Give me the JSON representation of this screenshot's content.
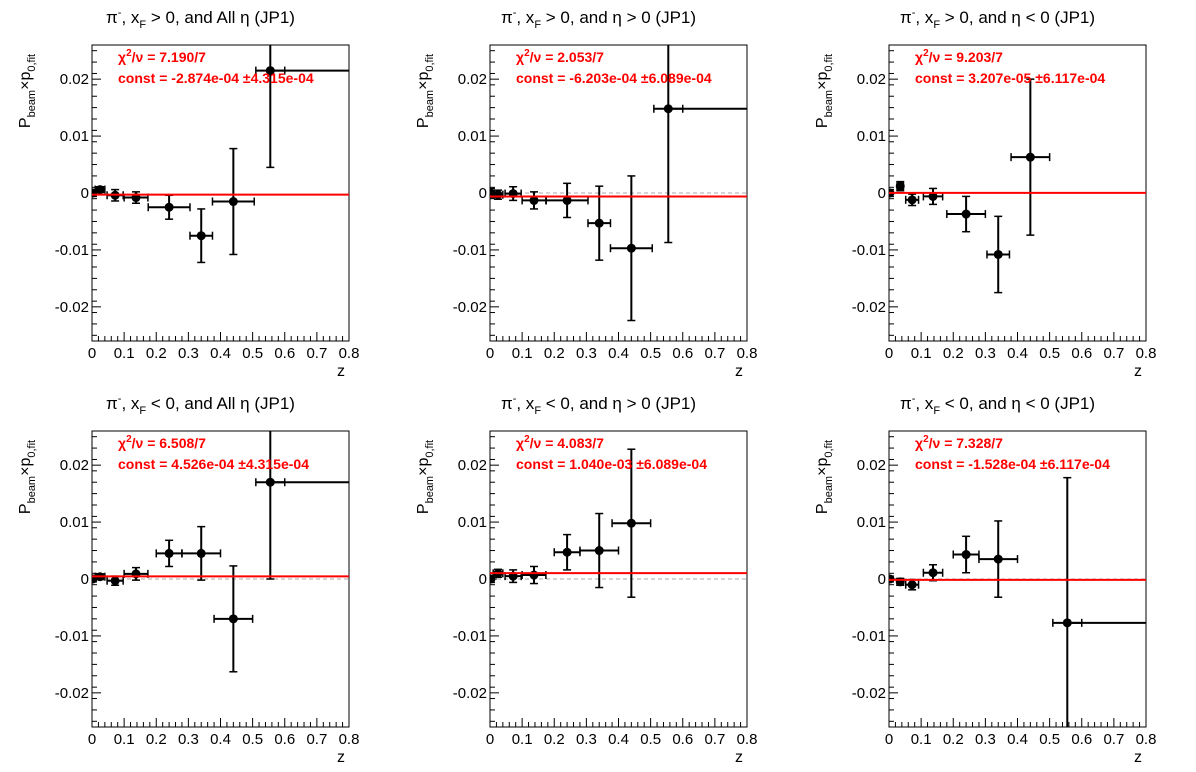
{
  "chart_data": [
    {
      "type": "scatter",
      "title": "π⁻, x_F > 0, and All η (JP1)",
      "title_parts": {
        "pre": "π",
        "sup": "-",
        "mid": ", x",
        "sub": "F",
        "post": " > 0, and All η (JP1)"
      },
      "xlabel": "z",
      "ylabel": "P_beam×p_0,fit",
      "ylabel_parts": {
        "a": "P",
        "a_sub": "beam",
        "b": "×p",
        "b_sub": "0,fit"
      },
      "xlim": [
        0,
        0.8
      ],
      "ylim": [
        -0.026,
        0.026
      ],
      "xticks": [
        "0",
        "0.1",
        "0.2",
        "0.3",
        "0.4",
        "0.5",
        "0.6",
        "0.7",
        "0.8"
      ],
      "yticks": [
        "-0.02",
        "-0.01",
        "0",
        "0.01",
        "0.02"
      ],
      "stat_chi": "χ²/ν = 7.190/7",
      "stat_chi_parts": {
        "a": "χ",
        "sup": "2",
        "b": "/ν = 7.190/7"
      },
      "stat_const": "const = -2.874e-04  ±4.315e-04",
      "fit_value": -0.0002874,
      "line_color": "#ff0000",
      "points": [
        {
          "x": 0.003,
          "y": 0.0,
          "xerr": 0.003,
          "yerr": 0.0006
        },
        {
          "x": 0.025,
          "y": 0.0006,
          "xerr": 0.015,
          "yerr": 0.0005
        },
        {
          "x": 0.072,
          "y": -0.0004,
          "xerr": 0.025,
          "yerr": 0.001
        },
        {
          "x": 0.137,
          "y": -0.0008,
          "xerr": 0.037,
          "yerr": 0.001
        },
        {
          "x": 0.24,
          "y": -0.0025,
          "xerr": 0.065,
          "yerr": 0.0021
        },
        {
          "x": 0.34,
          "y": -0.0075,
          "xerr": 0.035,
          "yerr": 0.0047
        },
        {
          "x": 0.44,
          "y": -0.0015,
          "xerr": 0.065,
          "yerr": 0.0093
        },
        {
          "x": 0.555,
          "y": 0.0215,
          "xerr": 0.045,
          "yerr": 0.017
        }
      ],
      "point_ext_right": 0.8
    },
    {
      "type": "scatter",
      "title": "π⁻, x_F > 0, and η > 0 (JP1)",
      "title_parts": {
        "pre": "π",
        "sup": "-",
        "mid": ", x",
        "sub": "F",
        "post": " > 0, and η > 0 (JP1)"
      },
      "xlabel": "z",
      "ylabel": "P_beam×p_0,fit",
      "ylabel_parts": {
        "a": "P",
        "a_sub": "beam",
        "b": "×p",
        "b_sub": "0,fit"
      },
      "xlim": [
        0,
        0.8
      ],
      "ylim": [
        -0.026,
        0.026
      ],
      "xticks": [
        "0",
        "0.1",
        "0.2",
        "0.3",
        "0.4",
        "0.5",
        "0.6",
        "0.7",
        "0.8"
      ],
      "yticks": [
        "-0.02",
        "-0.01",
        "0",
        "0.01",
        "0.02"
      ],
      "stat_chi": "χ²/ν = 2.053/7",
      "stat_chi_parts": {
        "a": "χ",
        "sup": "2",
        "b": "/ν = 2.053/7"
      },
      "stat_const": "const = -6.203e-04  ±6.089e-04",
      "fit_value": -0.0006203,
      "line_color": "#ff0000",
      "points": [
        {
          "x": 0.003,
          "y": 0.0,
          "xerr": 0.003,
          "yerr": 0.0008
        },
        {
          "x": 0.025,
          "y": -0.0003,
          "xerr": 0.015,
          "yerr": 0.0008
        },
        {
          "x": 0.072,
          "y": -0.0001,
          "xerr": 0.025,
          "yerr": 0.0012
        },
        {
          "x": 0.137,
          "y": -0.0013,
          "xerr": 0.037,
          "yerr": 0.0015
        },
        {
          "x": 0.24,
          "y": -0.0013,
          "xerr": 0.065,
          "yerr": 0.003
        },
        {
          "x": 0.34,
          "y": -0.0053,
          "xerr": 0.035,
          "yerr": 0.0065
        },
        {
          "x": 0.44,
          "y": -0.0097,
          "xerr": 0.065,
          "yerr": 0.0127
        },
        {
          "x": 0.555,
          "y": 0.0148,
          "xerr": 0.045,
          "yerr": 0.0235
        }
      ],
      "point_ext_right": 0.8,
      "zero_dashed": true
    },
    {
      "type": "scatter",
      "title": "π⁻, x_F > 0, and η < 0 (JP1)",
      "title_parts": {
        "pre": "π",
        "sup": "-",
        "mid": ", x",
        "sub": "F",
        "post": " > 0, and η < 0 (JP1)"
      },
      "xlabel": "z",
      "ylabel": "P_beam×p_0,fit",
      "ylabel_parts": {
        "a": "P",
        "a_sub": "beam",
        "b": "×p",
        "b_sub": "0,fit"
      },
      "xlim": [
        0,
        0.8
      ],
      "ylim": [
        -0.026,
        0.026
      ],
      "xticks": [
        "0",
        "0.1",
        "0.2",
        "0.3",
        "0.4",
        "0.5",
        "0.6",
        "0.7",
        "0.8"
      ],
      "yticks": [
        "-0.02",
        "-0.01",
        "0",
        "0.01",
        "0.02"
      ],
      "stat_chi": "χ²/ν = 9.203/7",
      "stat_chi_parts": {
        "a": "χ",
        "sup": "2",
        "b": "/ν = 9.203/7"
      },
      "stat_const": "const = 3.207e-05  ±6.117e-04",
      "fit_value": 3.207e-05,
      "line_color": "#ff0000",
      "points": [
        {
          "x": 0.003,
          "y": 0.0,
          "xerr": 0.003,
          "yerr": 0.0006
        },
        {
          "x": 0.035,
          "y": 0.0012,
          "xerr": 0.01,
          "yerr": 0.0008
        },
        {
          "x": 0.072,
          "y": -0.0012,
          "xerr": 0.02,
          "yerr": 0.001
        },
        {
          "x": 0.137,
          "y": -0.0006,
          "xerr": 0.03,
          "yerr": 0.0014
        },
        {
          "x": 0.24,
          "y": -0.0037,
          "xerr": 0.06,
          "yerr": 0.0031
        },
        {
          "x": 0.34,
          "y": -0.0108,
          "xerr": 0.035,
          "yerr": 0.0067
        },
        {
          "x": 0.44,
          "y": 0.0063,
          "xerr": 0.06,
          "yerr": 0.0137
        }
      ]
    },
    {
      "type": "scatter",
      "title": "π⁻, x_F < 0, and All η (JP1)",
      "title_parts": {
        "pre": "π",
        "sup": "-",
        "mid": ", x",
        "sub": "F",
        "post": " < 0, and All η (JP1)"
      },
      "xlabel": "z",
      "ylabel": "P_beam×p_0,fit",
      "ylabel_parts": {
        "a": "P",
        "a_sub": "beam",
        "b": "×p",
        "b_sub": "0,fit"
      },
      "xlim": [
        0,
        0.8
      ],
      "ylim": [
        -0.026,
        0.026
      ],
      "xticks": [
        "0",
        "0.1",
        "0.2",
        "0.3",
        "0.4",
        "0.5",
        "0.6",
        "0.7",
        "0.8"
      ],
      "yticks": [
        "-0.02",
        "-0.01",
        "0",
        "0.01",
        "0.02"
      ],
      "stat_chi": "χ²/ν = 6.508/7",
      "stat_chi_parts": {
        "a": "χ",
        "sup": "2",
        "b": "/ν = 6.508/7"
      },
      "stat_const": "const = 4.526e-04  ±4.315e-04",
      "fit_value": 0.0004526,
      "line_color": "#ff0000",
      "points": [
        {
          "x": 0.003,
          "y": 0.0,
          "xerr": 0.003,
          "yerr": 0.0005
        },
        {
          "x": 0.025,
          "y": 0.0004,
          "xerr": 0.015,
          "yerr": 0.0005
        },
        {
          "x": 0.072,
          "y": -0.0003,
          "xerr": 0.025,
          "yerr": 0.0008
        },
        {
          "x": 0.137,
          "y": 0.0009,
          "xerr": 0.037,
          "yerr": 0.0011
        },
        {
          "x": 0.24,
          "y": 0.0045,
          "xerr": 0.04,
          "yerr": 0.0023
        },
        {
          "x": 0.34,
          "y": 0.0045,
          "xerr": 0.06,
          "yerr": 0.0047
        },
        {
          "x": 0.44,
          "y": -0.007,
          "xerr": 0.06,
          "yerr": 0.0093
        },
        {
          "x": 0.555,
          "y": 0.017,
          "xerr": 0.045,
          "yerr": 0.017
        }
      ],
      "point_ext_right": 0.8,
      "zero_dashed": true
    },
    {
      "type": "scatter",
      "title": "π⁻, x_F < 0, and η > 0 (JP1)",
      "title_parts": {
        "pre": "π",
        "sup": "-",
        "mid": ", x",
        "sub": "F",
        "post": " < 0, and η > 0 (JP1)"
      },
      "xlabel": "z",
      "ylabel": "P_beam×p_0,fit",
      "ylabel_parts": {
        "a": "P",
        "a_sub": "beam",
        "b": "×p",
        "b_sub": "0,fit"
      },
      "xlim": [
        0,
        0.8
      ],
      "ylim": [
        -0.026,
        0.026
      ],
      "xticks": [
        "0",
        "0.1",
        "0.2",
        "0.3",
        "0.4",
        "0.5",
        "0.6",
        "0.7",
        "0.8"
      ],
      "yticks": [
        "-0.02",
        "-0.01",
        "0",
        "0.01",
        "0.02"
      ],
      "stat_chi": "χ²/ν = 4.083/7",
      "stat_chi_parts": {
        "a": "χ",
        "sup": "2",
        "b": "/ν = 4.083/7"
      },
      "stat_const": "const = 1.040e-03  ±6.089e-04",
      "fit_value": 0.00104,
      "line_color": "#ff0000",
      "points": [
        {
          "x": 0.003,
          "y": 0.0,
          "xerr": 0.003,
          "yerr": 0.0006
        },
        {
          "x": 0.025,
          "y": 0.001,
          "xerr": 0.015,
          "yerr": 0.0007
        },
        {
          "x": 0.072,
          "y": 0.0005,
          "xerr": 0.025,
          "yerr": 0.0011
        },
        {
          "x": 0.137,
          "y": 0.0007,
          "xerr": 0.037,
          "yerr": 0.0015
        },
        {
          "x": 0.24,
          "y": 0.0047,
          "xerr": 0.04,
          "yerr": 0.0031
        },
        {
          "x": 0.34,
          "y": 0.005,
          "xerr": 0.06,
          "yerr": 0.0065
        },
        {
          "x": 0.44,
          "y": 0.0098,
          "xerr": 0.06,
          "yerr": 0.013
        }
      ],
      "zero_dashed": true
    },
    {
      "type": "scatter",
      "title": "π⁻, x_F < 0, and η < 0 (JP1)",
      "title_parts": {
        "pre": "π",
        "sup": "-",
        "mid": ", x",
        "sub": "F",
        "post": " < 0, and η < 0 (JP1)"
      },
      "xlabel": "z",
      "ylabel": "P_beam×p_0,fit",
      "ylabel_parts": {
        "a": "P",
        "a_sub": "beam",
        "b": "×p",
        "b_sub": "0,fit"
      },
      "xlim": [
        0,
        0.8
      ],
      "ylim": [
        -0.026,
        0.026
      ],
      "xticks": [
        "0",
        "0.1",
        "0.2",
        "0.3",
        "0.4",
        "0.5",
        "0.6",
        "0.7",
        "0.8"
      ],
      "yticks": [
        "-0.02",
        "-0.01",
        "0",
        "0.01",
        "0.02"
      ],
      "stat_chi": "χ²/ν = 7.328/7",
      "stat_chi_parts": {
        "a": "χ",
        "sup": "2",
        "b": "/ν = 7.328/7"
      },
      "stat_const": "const = -1.528e-04  ±6.117e-04",
      "fit_value": -0.0001528,
      "line_color": "#ff0000",
      "points": [
        {
          "x": 0.003,
          "y": 0.0,
          "xerr": 0.003,
          "yerr": 0.0005
        },
        {
          "x": 0.035,
          "y": -0.0005,
          "xerr": 0.01,
          "yerr": 0.0006
        },
        {
          "x": 0.072,
          "y": -0.001,
          "xerr": 0.02,
          "yerr": 0.0009
        },
        {
          "x": 0.137,
          "y": 0.0011,
          "xerr": 0.03,
          "yerr": 0.0014
        },
        {
          "x": 0.24,
          "y": 0.0043,
          "xerr": 0.04,
          "yerr": 0.0032
        },
        {
          "x": 0.34,
          "y": 0.0035,
          "xerr": 0.06,
          "yerr": 0.0067
        },
        {
          "x": 0.555,
          "y": -0.0077,
          "xerr": 0.045,
          "yerr": 0.0255
        }
      ],
      "point_ext_right": 0.8,
      "zero_dashed": true
    }
  ]
}
